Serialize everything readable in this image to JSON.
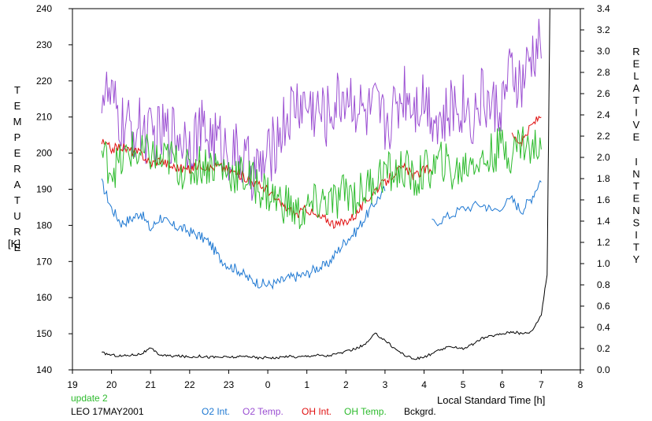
{
  "chart_data": {
    "type": "line",
    "ylabel_left": "TEMPERATURE",
    "ylabel_left_unit": "[K]",
    "ylabel_right": "RELATIVE INTENSITY",
    "xlabel": "Local Standard Time [h]",
    "status_text": "update 2",
    "station_date": "LEO 17MAY2001",
    "xlim": [
      19,
      32
    ],
    "ylim_left": [
      140,
      240
    ],
    "ylim_right": [
      0,
      3.4
    ],
    "x_ticks": [
      {
        "value": 19,
        "label": "19"
      },
      {
        "value": 20,
        "label": "20"
      },
      {
        "value": 21,
        "label": "21"
      },
      {
        "value": 22,
        "label": "22"
      },
      {
        "value": 23,
        "label": "23"
      },
      {
        "value": 24,
        "label": "0"
      },
      {
        "value": 25,
        "label": "1"
      },
      {
        "value": 26,
        "label": "2"
      },
      {
        "value": 27,
        "label": "3"
      },
      {
        "value": 28,
        "label": "4"
      },
      {
        "value": 29,
        "label": "5"
      },
      {
        "value": 30,
        "label": "6"
      },
      {
        "value": 31,
        "label": "7"
      },
      {
        "value": 32,
        "label": "8"
      }
    ],
    "y_ticks_left": [
      {
        "value": 140,
        "label": "140"
      },
      {
        "value": 150,
        "label": "150"
      },
      {
        "value": 160,
        "label": "160"
      },
      {
        "value": 170,
        "label": "170"
      },
      {
        "value": 180,
        "label": "180"
      },
      {
        "value": 190,
        "label": "190"
      },
      {
        "value": 200,
        "label": "200"
      },
      {
        "value": 210,
        "label": "210"
      },
      {
        "value": 220,
        "label": "220"
      },
      {
        "value": 230,
        "label": "230"
      },
      {
        "value": 240,
        "label": "240"
      }
    ],
    "y_ticks_right": [
      {
        "value": 0.0,
        "label": "0.0"
      },
      {
        "value": 0.2,
        "label": "0.2"
      },
      {
        "value": 0.4,
        "label": "0.4"
      },
      {
        "value": 0.6,
        "label": "0.6"
      },
      {
        "value": 0.8,
        "label": "0.8"
      },
      {
        "value": 1.0,
        "label": "1.0"
      },
      {
        "value": 1.2,
        "label": "1.2"
      },
      {
        "value": 1.4,
        "label": "1.4"
      },
      {
        "value": 1.6,
        "label": "1.6"
      },
      {
        "value": 1.8,
        "label": "1.8"
      },
      {
        "value": 2.0,
        "label": "2.0"
      },
      {
        "value": 2.2,
        "label": "2.2"
      },
      {
        "value": 2.4,
        "label": "2.4"
      },
      {
        "value": 2.6,
        "label": "2.6"
      },
      {
        "value": 2.8,
        "label": "2.8"
      },
      {
        "value": 3.0,
        "label": "3.0"
      },
      {
        "value": 3.2,
        "label": "3.2"
      },
      {
        "value": 3.4,
        "label": "3.4"
      }
    ],
    "series": [
      {
        "name": "O2 Int.",
        "color": "#1e78d2",
        "axis": "right",
        "points": [
          [
            19.75,
            1.76
          ],
          [
            20.0,
            1.52
          ],
          [
            20.25,
            1.38
          ],
          [
            20.5,
            1.42
          ],
          [
            20.75,
            1.48
          ],
          [
            21.0,
            1.32
          ],
          [
            21.25,
            1.44
          ],
          [
            21.5,
            1.36
          ],
          [
            21.75,
            1.34
          ],
          [
            22.0,
            1.3
          ],
          [
            22.25,
            1.26
          ],
          [
            22.5,
            1.2
          ],
          [
            22.75,
            1.06
          ],
          [
            23.0,
            0.98
          ],
          [
            23.25,
            0.94
          ],
          [
            23.5,
            0.86
          ],
          [
            23.75,
            0.82
          ],
          [
            24.0,
            0.8
          ],
          [
            24.25,
            0.82
          ],
          [
            24.5,
            0.86
          ],
          [
            24.75,
            0.88
          ],
          [
            25.0,
            0.9
          ],
          [
            25.25,
            0.96
          ],
          [
            25.5,
            0.98
          ],
          [
            25.75,
            1.1
          ],
          [
            26.0,
            1.22
          ],
          [
            26.25,
            1.3
          ],
          [
            26.5,
            1.44
          ],
          [
            26.75,
            1.58
          ],
          [
            27.0,
            1.7
          ],
          [
            28.2,
            1.38
          ],
          [
            28.6,
            1.44
          ],
          [
            29.0,
            1.52
          ],
          [
            29.5,
            1.56
          ],
          [
            29.75,
            1.5
          ],
          [
            30.25,
            1.6
          ],
          [
            30.5,
            1.5
          ],
          [
            30.75,
            1.62
          ],
          [
            31.0,
            1.8
          ]
        ]
      },
      {
        "name": "O2 Temp.",
        "color": "#9b4fd2",
        "axis": "left",
        "points": [
          [
            19.75,
            218
          ],
          [
            20.0,
            214
          ],
          [
            20.25,
            208
          ],
          [
            20.5,
            206
          ],
          [
            20.75,
            207
          ],
          [
            21.0,
            204
          ],
          [
            21.25,
            205
          ],
          [
            21.5,
            206
          ],
          [
            21.75,
            205
          ],
          [
            22.0,
            204
          ],
          [
            22.25,
            206
          ],
          [
            22.5,
            205
          ],
          [
            22.75,
            203
          ],
          [
            23.0,
            201
          ],
          [
            23.25,
            199
          ],
          [
            23.5,
            196
          ],
          [
            23.75,
            195
          ],
          [
            24.0,
            198
          ],
          [
            24.25,
            205
          ],
          [
            24.5,
            210
          ],
          [
            24.75,
            214
          ],
          [
            25.0,
            213
          ],
          [
            25.25,
            212
          ],
          [
            25.5,
            210
          ],
          [
            25.75,
            214
          ],
          [
            26.0,
            217
          ],
          [
            26.25,
            214
          ],
          [
            26.5,
            210
          ],
          [
            26.75,
            212
          ],
          [
            27.0,
            208
          ],
          [
            27.25,
            212
          ],
          [
            27.5,
            218
          ],
          [
            27.75,
            214
          ],
          [
            28.0,
            216
          ],
          [
            28.25,
            211
          ],
          [
            28.5,
            208
          ],
          [
            28.75,
            213
          ],
          [
            29.0,
            214
          ],
          [
            29.25,
            210
          ],
          [
            29.5,
            216
          ],
          [
            29.75,
            212
          ],
          [
            30.0,
            214
          ],
          [
            30.25,
            222
          ],
          [
            30.5,
            218
          ],
          [
            30.75,
            226
          ],
          [
            31.0,
            230
          ]
        ]
      },
      {
        "name": "OH Int.",
        "color": "#e01010",
        "axis": "right",
        "points": [
          [
            19.75,
            2.14
          ],
          [
            20.0,
            2.08
          ],
          [
            20.25,
            2.1
          ],
          [
            20.5,
            2.06
          ],
          [
            20.75,
            2.04
          ],
          [
            21.0,
            1.94
          ],
          [
            21.25,
            1.98
          ],
          [
            21.5,
            1.92
          ],
          [
            21.75,
            1.9
          ],
          [
            22.0,
            1.88
          ],
          [
            22.25,
            1.94
          ],
          [
            22.5,
            1.9
          ],
          [
            22.75,
            1.92
          ],
          [
            23.0,
            1.88
          ],
          [
            23.25,
            1.84
          ],
          [
            23.5,
            1.8
          ],
          [
            23.75,
            1.74
          ],
          [
            24.0,
            1.7
          ],
          [
            24.25,
            1.58
          ],
          [
            24.5,
            1.52
          ],
          [
            24.75,
            1.46
          ],
          [
            25.0,
            1.52
          ],
          [
            25.25,
            1.44
          ],
          [
            25.5,
            1.42
          ],
          [
            25.75,
            1.36
          ],
          [
            26.0,
            1.4
          ],
          [
            26.25,
            1.46
          ],
          [
            26.5,
            1.58
          ],
          [
            26.75,
            1.7
          ],
          [
            27.0,
            1.76
          ],
          [
            27.25,
            1.86
          ],
          [
            27.5,
            1.9
          ],
          [
            27.75,
            1.82
          ],
          [
            28.0,
            1.88
          ],
          [
            28.2,
            1.9
          ],
          [
            30.25,
            2.2
          ],
          [
            30.5,
            2.14
          ],
          [
            30.75,
            2.3
          ],
          [
            31.0,
            2.4
          ]
        ]
      },
      {
        "name": "OH Temp.",
        "color": "#2dbb2d",
        "axis": "left",
        "points": [
          [
            19.75,
            200
          ],
          [
            20.0,
            196
          ],
          [
            20.25,
            197
          ],
          [
            20.5,
            201
          ],
          [
            20.75,
            199
          ],
          [
            21.0,
            200
          ],
          [
            21.25,
            197
          ],
          [
            21.5,
            199
          ],
          [
            21.75,
            196
          ],
          [
            22.0,
            195
          ],
          [
            22.25,
            197
          ],
          [
            22.5,
            197
          ],
          [
            22.75,
            196
          ],
          [
            23.0,
            195
          ],
          [
            23.25,
            194
          ],
          [
            23.5,
            193
          ],
          [
            23.75,
            191
          ],
          [
            24.0,
            189
          ],
          [
            24.25,
            187
          ],
          [
            24.5,
            186
          ],
          [
            24.75,
            183
          ],
          [
            25.0,
            184
          ],
          [
            25.25,
            186
          ],
          [
            25.5,
            187
          ],
          [
            25.75,
            186
          ],
          [
            26.0,
            190
          ],
          [
            26.25,
            188
          ],
          [
            26.5,
            190
          ],
          [
            26.75,
            193
          ],
          [
            27.0,
            195
          ],
          [
            27.25,
            194
          ],
          [
            27.5,
            196
          ],
          [
            27.75,
            192
          ],
          [
            28.0,
            195
          ],
          [
            28.25,
            196
          ],
          [
            28.5,
            198
          ],
          [
            28.75,
            194
          ],
          [
            29.0,
            196
          ],
          [
            29.25,
            199
          ],
          [
            29.5,
            197
          ],
          [
            29.75,
            200
          ],
          [
            30.0,
            202
          ],
          [
            30.25,
            200
          ],
          [
            30.5,
            204
          ],
          [
            30.75,
            200
          ],
          [
            31.0,
            204
          ]
        ]
      },
      {
        "name": "Bckgrd.",
        "color": "#000000",
        "axis": "right",
        "points": [
          [
            19.75,
            0.16
          ],
          [
            20.0,
            0.14
          ],
          [
            20.25,
            0.13
          ],
          [
            20.5,
            0.14
          ],
          [
            20.75,
            0.15
          ],
          [
            21.0,
            0.2
          ],
          [
            21.25,
            0.14
          ],
          [
            21.5,
            0.13
          ],
          [
            21.75,
            0.13
          ],
          [
            22.0,
            0.12
          ],
          [
            22.25,
            0.13
          ],
          [
            22.5,
            0.12
          ],
          [
            22.75,
            0.12
          ],
          [
            23.0,
            0.12
          ],
          [
            23.25,
            0.12
          ],
          [
            23.5,
            0.13
          ],
          [
            23.75,
            0.11
          ],
          [
            24.0,
            0.12
          ],
          [
            24.25,
            0.11
          ],
          [
            24.5,
            0.13
          ],
          [
            24.75,
            0.12
          ],
          [
            25.0,
            0.13
          ],
          [
            25.25,
            0.14
          ],
          [
            25.5,
            0.13
          ],
          [
            25.75,
            0.15
          ],
          [
            26.0,
            0.17
          ],
          [
            26.25,
            0.2
          ],
          [
            26.5,
            0.24
          ],
          [
            26.75,
            0.34
          ],
          [
            27.0,
            0.28
          ],
          [
            27.25,
            0.2
          ],
          [
            27.5,
            0.14
          ],
          [
            27.75,
            0.1
          ],
          [
            28.0,
            0.12
          ],
          [
            28.25,
            0.16
          ],
          [
            28.5,
            0.2
          ],
          [
            28.75,
            0.22
          ],
          [
            29.0,
            0.2
          ],
          [
            29.25,
            0.24
          ],
          [
            29.5,
            0.3
          ],
          [
            29.75,
            0.32
          ],
          [
            30.0,
            0.34
          ],
          [
            30.25,
            0.36
          ],
          [
            30.5,
            0.34
          ],
          [
            30.75,
            0.36
          ],
          [
            31.0,
            0.52
          ],
          [
            31.15,
            0.9
          ],
          [
            31.22,
            3.4
          ]
        ]
      }
    ],
    "legend_position": "bottom"
  }
}
